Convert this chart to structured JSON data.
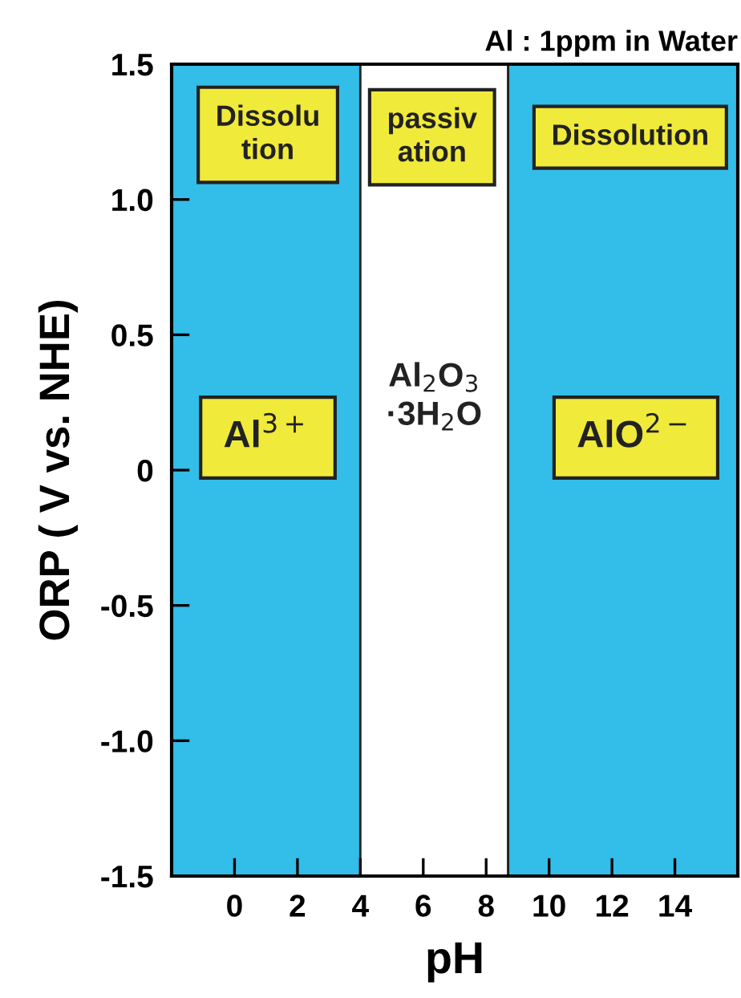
{
  "chart_data": {
    "type": "area",
    "grid": false,
    "title": "Al : 1ppm in Water",
    "xlabel": "pH",
    "ylabel": "ORP ( V vs. NHE)",
    "xlim": [
      -2,
      16
    ],
    "xticks": [
      0,
      2,
      4,
      6,
      8,
      10,
      12,
      14
    ],
    "ylim": [
      -1.5,
      1.5
    ],
    "yticks": [
      {
        "value": -1.5,
        "label": "-1.5"
      },
      {
        "value": -1.0,
        "label": "-1.0"
      },
      {
        "value": -0.5,
        "label": "-0.5"
      },
      {
        "value": 0,
        "label": "0"
      },
      {
        "value": 0.5,
        "label": "0.5"
      },
      {
        "value": 1.0,
        "label": "1.0"
      },
      {
        "value": 1.5,
        "label": "1.5"
      }
    ],
    "bands": [
      {
        "axis": "x",
        "from": -2,
        "to": 4,
        "color": "#33bde9"
      },
      {
        "axis": "x",
        "from": 4,
        "to": 8.7,
        "color": "#ffffff",
        "label": "Al$_{2}$O$_{3}$\n·3H$_{2}$O"
      },
      {
        "axis": "x",
        "from": 8.7,
        "to": 16,
        "color": "#33bde9"
      }
    ],
    "annotations": [
      "Dissolu\ntion",
      "passiv\nation",
      "Dissolution",
      "Al$^{3+}$",
      "AlO$^{2−}$"
    ]
  }
}
